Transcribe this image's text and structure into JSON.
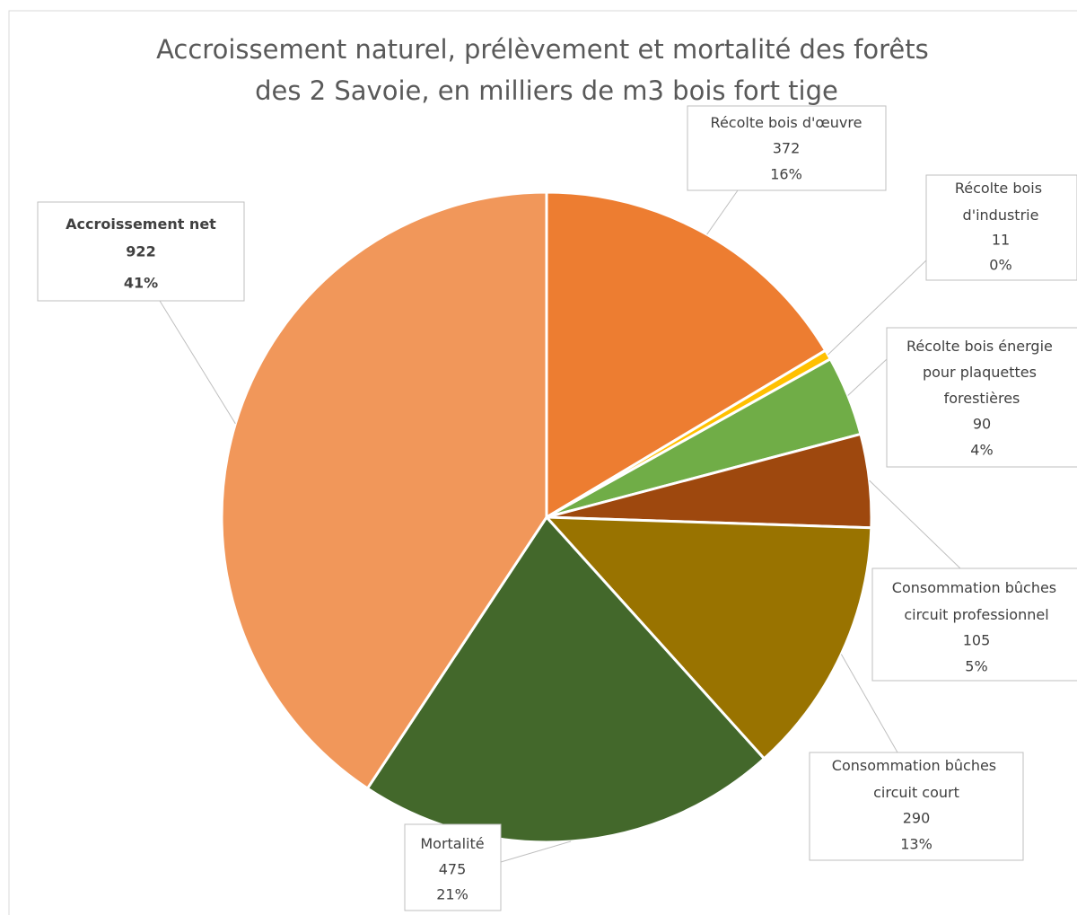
{
  "chart_data": {
    "type": "pie",
    "title": "Accroissement naturel, prélèvement et mortalité des forêts des 2 Savoie, en milliers de m3 bois fort tige",
    "categories": [
      "Récolte bois d'œuvre",
      "Récolte bois d'industrie",
      "Récolte bois énergie pour plaquettes forestières",
      "Consommation bûches circuit professionnel",
      "Consommation bûches circuit court",
      "Mortalité",
      "Accroissement net"
    ],
    "values": [
      372,
      11,
      90,
      105,
      290,
      475,
      922
    ],
    "percent_labels": [
      "16%",
      "0%",
      "4%",
      "5%",
      "13%",
      "21%",
      "41%"
    ],
    "colors": [
      "#ED7D31",
      "#FFC000",
      "#70AD47",
      "#9E480E",
      "#997300",
      "#43682B",
      "#F1975A"
    ]
  }
}
